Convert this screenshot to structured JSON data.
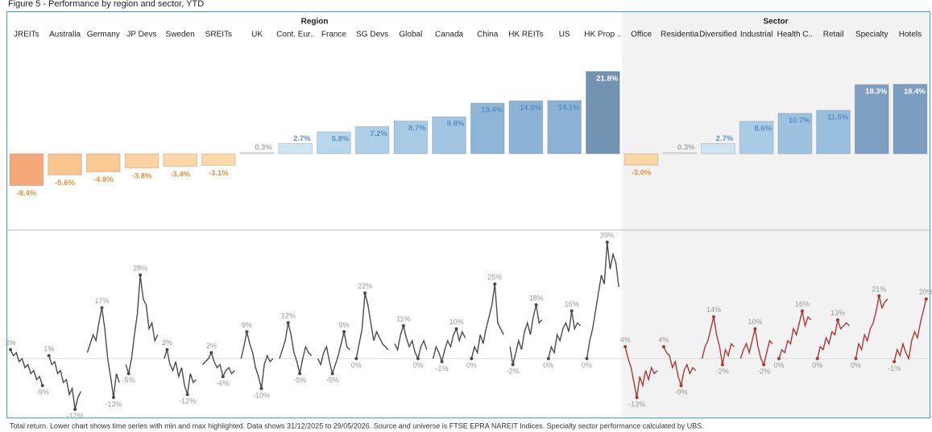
{
  "title": "Figure 5 - Performance by region and sector, YTD",
  "footnote": "Total return. Lower chart shows time series with min and max highlighted. Data shows 31/12/2025 to 29/05/2026. Source and universe is FTSE EPRA NAREIT Indices. Specialty sector performance calculated by UBS.",
  "chart_data": [
    {
      "type": "bar",
      "groups": [
        {
          "name": "Region",
          "categories": [
            "JREITs",
            "Australia",
            "Germany",
            "JP Devs",
            "Sweden",
            "SREITs",
            "UK",
            "Cont. Eur..",
            "France",
            "SG Devs",
            "Global",
            "Canada",
            "China",
            "HK REITs",
            "US",
            "HK Prop .."
          ]
        },
        {
          "name": "Sector",
          "categories": [
            "Office",
            "Residentia",
            "Diversified",
            "Industrial",
            "Health C..",
            "Retail",
            "Specialty",
            "Hotels"
          ]
        }
      ],
      "values": [
        -8.4,
        -5.6,
        -4.8,
        -3.8,
        -3.4,
        -3.1,
        0.3,
        2.7,
        5.8,
        7.2,
        8.7,
        9.8,
        13.4,
        14.0,
        14.1,
        21.8,
        -3.0,
        0.3,
        2.7,
        8.6,
        10.7,
        11.5,
        18.3,
        18.4
      ],
      "value_labels": [
        "-8.4%",
        "-5.6%",
        "-4.8%",
        "-3.8%",
        "-3.4%",
        "-3.1%",
        "0.3%",
        "2.7%",
        "5.8%",
        "7.2%",
        "8.7%",
        "9.8%",
        "13.4%",
        "14.0%",
        "14.1%",
        "21.8%",
        "-3.0%",
        "0.3%",
        "2.7%",
        "8.6%",
        "10.7%",
        "11.5%",
        "18.3%",
        "18.4%"
      ],
      "colors": [
        "#f4a878",
        "#f9c48e",
        "#fac994",
        "#fbd2a0",
        "#fcd7a8",
        "#fcd9ab",
        "#e9e9e9",
        "#cfe4f2",
        "#b8d7ee",
        "#aecfe8",
        "#a7cae5",
        "#a1c5e2",
        "#8fb5d7",
        "#8cb3d5",
        "#8bb2d5",
        "#7393b3",
        "#fcd5a5",
        "#e9e9e9",
        "#cfe4f2",
        "#a8cbe6",
        "#9dc2e0",
        "#99bfde",
        "#7d9fc2",
        "#7c9ec1"
      ],
      "ylim": [
        -20,
        29
      ]
    },
    {
      "type": "line",
      "ylim": [
        -20,
        42
      ],
      "series": [
        {
          "color": "#4d4a48",
          "values": [
            3,
            1,
            2,
            -1,
            0,
            -3,
            -2,
            -5,
            -4,
            -7,
            -6,
            -9
          ],
          "value_labels": [
            "3%",
            null,
            null,
            null,
            null,
            null,
            null,
            null,
            null,
            null,
            null,
            "-9%"
          ]
        },
        {
          "color": "#4d4a48",
          "values": [
            1,
            -2,
            -1,
            -5,
            -4,
            -8,
            -7,
            -12,
            -10,
            -17,
            -13,
            -11
          ],
          "value_labels": [
            "1%",
            null,
            null,
            null,
            null,
            null,
            null,
            null,
            null,
            "-17%",
            null,
            null
          ]
        },
        {
          "color": "#4d4a48",
          "values": [
            2,
            5,
            8,
            6,
            12,
            17,
            10,
            0,
            -6,
            -13,
            -5,
            -8
          ],
          "value_labels": [
            null,
            null,
            null,
            null,
            null,
            "17%",
            null,
            null,
            null,
            "-13%",
            null,
            null
          ]
        },
        {
          "color": "#4d4a48",
          "values": [
            -2,
            -5,
            0,
            8,
            15,
            28,
            20,
            18,
            10,
            12,
            6,
            8
          ],
          "value_labels": [
            null,
            "-5%",
            null,
            null,
            null,
            "28%",
            null,
            null,
            null,
            null,
            null,
            null
          ]
        },
        {
          "color": "#4d4a48",
          "values": [
            0,
            3,
            -2,
            -4,
            -1,
            -6,
            -3,
            -9,
            -12,
            -5,
            -8,
            -7
          ],
          "value_labels": [
            null,
            "3%",
            null,
            null,
            null,
            null,
            null,
            null,
            "-12%",
            null,
            null,
            null
          ]
        },
        {
          "color": "#4d4a48",
          "values": [
            -2,
            -1,
            0,
            2,
            -1,
            -3,
            -2,
            -6,
            -4,
            -3,
            -5,
            -4
          ],
          "value_labels": [
            null,
            null,
            null,
            "2%",
            null,
            null,
            null,
            "-6%",
            null,
            null,
            null,
            null
          ]
        },
        {
          "color": "#4d4a48",
          "values": [
            0,
            4,
            9,
            5,
            2,
            -3,
            -6,
            -10,
            -2,
            1,
            -1,
            0
          ],
          "value_labels": [
            null,
            null,
            "9%",
            null,
            null,
            null,
            null,
            "-10%",
            null,
            null,
            null,
            null
          ]
        },
        {
          "color": "#4d4a48",
          "values": [
            0,
            3,
            6,
            12,
            8,
            2,
            -1,
            -5,
            0,
            4,
            2,
            1
          ],
          "value_labels": [
            null,
            null,
            null,
            "12%",
            null,
            null,
            null,
            "-5%",
            null,
            null,
            null,
            null
          ]
        },
        {
          "color": "#4d4a48",
          "values": [
            0,
            -2,
            2,
            4,
            -1,
            -5,
            -2,
            1,
            5,
            9,
            4,
            3
          ],
          "value_labels": [
            null,
            null,
            null,
            null,
            null,
            "-5%",
            null,
            null,
            null,
            "9%",
            null,
            null
          ]
        },
        {
          "color": "#4d4a48",
          "values": [
            0,
            5,
            10,
            22,
            18,
            12,
            6,
            9,
            7,
            5,
            4,
            3
          ],
          "value_labels": [
            "0%",
            null,
            null,
            "22%",
            null,
            null,
            null,
            null,
            null,
            null,
            null,
            null
          ]
        },
        {
          "color": "#4d4a48",
          "values": [
            5,
            3,
            8,
            11,
            7,
            4,
            6,
            2,
            0,
            4,
            6,
            3
          ],
          "value_labels": [
            null,
            null,
            null,
            "11%",
            null,
            null,
            null,
            null,
            "0%",
            null,
            null,
            null
          ]
        },
        {
          "color": "#4d4a48",
          "values": [
            0,
            4,
            2,
            -1,
            3,
            6,
            4,
            8,
            10,
            6,
            9,
            7
          ],
          "value_labels": [
            null,
            null,
            null,
            "-1%",
            null,
            null,
            null,
            null,
            "10%",
            null,
            null,
            null
          ]
        },
        {
          "color": "#4d4a48",
          "values": [
            0,
            4,
            2,
            8,
            5,
            10,
            14,
            18,
            25,
            12,
            10,
            8
          ],
          "value_labels": [
            "0%",
            null,
            null,
            null,
            null,
            null,
            null,
            null,
            "25%",
            null,
            null,
            null
          ]
        },
        {
          "color": "#4d4a48",
          "values": [
            4,
            -2,
            2,
            6,
            3,
            9,
            12,
            8,
            14,
            18,
            12,
            13
          ],
          "value_labels": [
            null,
            "-2%",
            null,
            null,
            null,
            null,
            null,
            null,
            null,
            "18%",
            null,
            null
          ]
        },
        {
          "color": "#4d4a48",
          "values": [
            0,
            4,
            2,
            8,
            6,
            10,
            12,
            9,
            16,
            10,
            12,
            11
          ],
          "value_labels": [
            "0%",
            null,
            null,
            null,
            null,
            null,
            null,
            null,
            "16%",
            null,
            null,
            null
          ]
        },
        {
          "color": "#4d4a48",
          "values": [
            0,
            6,
            10,
            16,
            22,
            28,
            25,
            39,
            30,
            35,
            32,
            24
          ],
          "value_labels": [
            "0%",
            null,
            null,
            null,
            null,
            null,
            null,
            "39%",
            null,
            null,
            null,
            null
          ]
        },
        {
          "color": "#a83a35",
          "values": [
            4,
            0,
            -3,
            -8,
            -13,
            -6,
            -9,
            -4,
            -7,
            -3,
            -5,
            -4
          ],
          "value_labels": [
            "4%",
            null,
            null,
            null,
            "-13%",
            null,
            null,
            null,
            null,
            null,
            null,
            null
          ]
        },
        {
          "color": "#a83a35",
          "values": [
            4,
            2,
            1,
            -3,
            -1,
            -6,
            -9,
            -4,
            -2,
            -5,
            -3,
            -4
          ],
          "value_labels": [
            "4%",
            null,
            null,
            null,
            null,
            null,
            "-9%",
            null,
            null,
            null,
            null,
            null
          ]
        },
        {
          "color": "#a83a35",
          "values": [
            0,
            4,
            6,
            10,
            14,
            8,
            4,
            -2,
            3,
            1,
            5,
            4
          ],
          "value_labels": [
            null,
            null,
            null,
            null,
            "14%",
            null,
            null,
            "-2%",
            null,
            null,
            null,
            null
          ]
        },
        {
          "color": "#a83a35",
          "values": [
            0,
            3,
            5,
            2,
            6,
            10,
            4,
            0,
            -2,
            2,
            6,
            5
          ],
          "value_labels": [
            null,
            null,
            null,
            null,
            null,
            "10%",
            null,
            null,
            "-2%",
            null,
            null,
            null
          ]
        },
        {
          "color": "#a83a35",
          "values": [
            0,
            3,
            2,
            6,
            5,
            10,
            8,
            12,
            16,
            11,
            14,
            13
          ],
          "value_labels": [
            "0%",
            null,
            null,
            null,
            null,
            null,
            null,
            null,
            "16%",
            null,
            null,
            null
          ]
        },
        {
          "color": "#a83a35",
          "values": [
            0,
            4,
            3,
            7,
            5,
            9,
            8,
            13,
            10,
            11,
            12,
            11
          ],
          "value_labels": [
            "0%",
            null,
            null,
            null,
            null,
            null,
            null,
            "13%",
            null,
            null,
            null,
            null
          ]
        },
        {
          "color": "#a83a35",
          "values": [
            0,
            5,
            3,
            8,
            6,
            10,
            12,
            16,
            21,
            17,
            19,
            20
          ],
          "value_labels": [
            "0%",
            null,
            null,
            null,
            null,
            null,
            null,
            null,
            "21%",
            null,
            null,
            null
          ]
        },
        {
          "color": "#a83a35",
          "values": [
            -1,
            3,
            1,
            5,
            2,
            0,
            6,
            9,
            7,
            12,
            16,
            20
          ],
          "value_labels": [
            "-1%",
            null,
            null,
            null,
            null,
            null,
            null,
            null,
            null,
            null,
            null,
            "20%"
          ]
        }
      ]
    }
  ]
}
